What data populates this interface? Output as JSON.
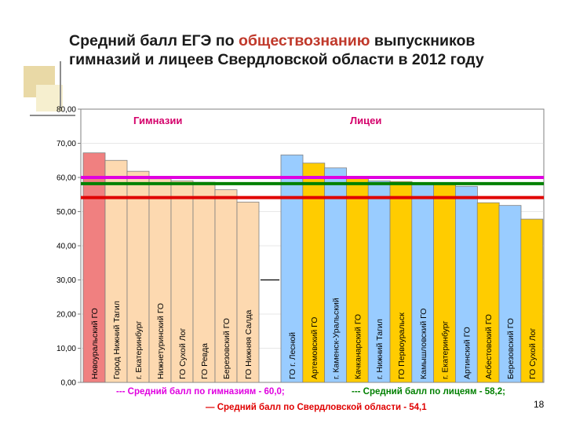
{
  "title": {
    "part1": "Средний  балл ЕГЭ по ",
    "highlight": "обществознанию",
    "part2": " выпускников гимназий и лицеев Свердловской области в 2012 году"
  },
  "page_number": "18",
  "colors": {
    "gymnasium_first": "#f08080",
    "gymnasium_rest": "#fdd9b0",
    "lyceum_a": "#99ccff",
    "lyceum_b": "#ffcc00",
    "gymnasium_line": "#e000e0",
    "lyceum_line": "#008000",
    "region_line": "#e00000",
    "group_label": "#d4006a"
  },
  "chart_data": {
    "type": "bar",
    "ylim": [
      0,
      80
    ],
    "yticks": [
      "0,00",
      "10,00",
      "20,00",
      "30,00",
      "40,00",
      "50,00",
      "60,00",
      "70,00",
      "80,00"
    ],
    "group_labels": [
      "Гимназии",
      "Лицеи"
    ],
    "gymnasiums": {
      "categories": [
        "Новоуральский ГО",
        "Город Нижний Тагил",
        "г. Екатеринбург",
        "Нижнетуринский ГО",
        "ГО Сухой Лог",
        "ГО Ревда",
        "Березовский ГО",
        "ГО Нижняя Салда"
      ],
      "values": [
        67.2,
        65.0,
        61.8,
        59.6,
        59.0,
        58.6,
        56.4,
        52.8
      ]
    },
    "separator_value": 30.0,
    "lyceums": {
      "categories": [
        "ГО г. Лесной",
        "Артемовский ГО",
        "г. Каменск-Уральский",
        "Качканарский ГО",
        "г. Нижний Тагил",
        "ГО Первоуральск",
        "Камышловский ГО",
        "г. Екатеринбург",
        "Артинский ГО",
        "Асбестовский ГО",
        "Березовский ГО",
        "ГО Сухой Лог"
      ],
      "values": [
        66.6,
        64.2,
        62.8,
        60.0,
        59.0,
        58.8,
        58.4,
        58.0,
        57.4,
        52.6,
        51.8,
        47.8
      ]
    },
    "reference_lines": [
      {
        "value": 60.0,
        "label": "--- Средний балл по гимназиям - 60,0;"
      },
      {
        "value": 58.2,
        "label": "--- Средний балл по лицеям - 58,2;"
      },
      {
        "value": 54.1,
        "label": "— Средний балл по Свердловской области - 54,1"
      }
    ]
  }
}
